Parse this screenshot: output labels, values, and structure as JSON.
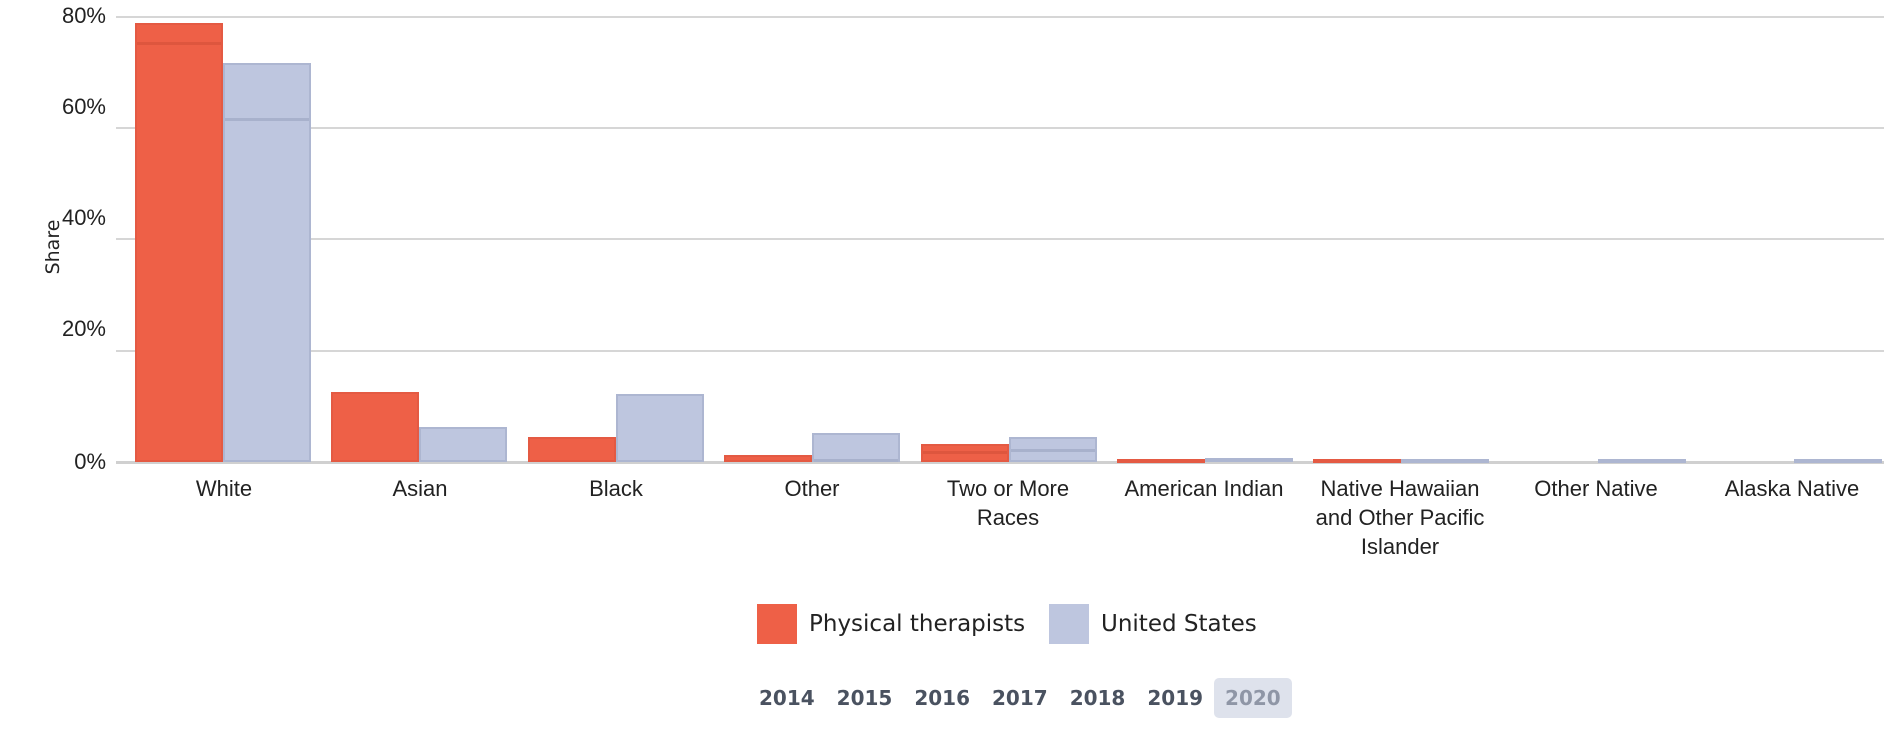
{
  "chart_data": {
    "type": "bar",
    "title": "",
    "xlabel": "",
    "ylabel": "Share",
    "ylim": [
      0,
      80
    ],
    "yticks": [
      "0%",
      "20%",
      "40%",
      "60%",
      "80%"
    ],
    "grid": true,
    "legend_position": "bottom",
    "categories": [
      "White",
      "Asian",
      "Black",
      "Other",
      "Two or More Races",
      "American Indian",
      "Native Hawaiian and Other Pacific Islander",
      "Other Native",
      "Alaska Native"
    ],
    "series": [
      {
        "name": "Physical therapists",
        "color": "#ee6047",
        "values": [
          78.9,
          12.6,
          4.5,
          1.3,
          3.2,
          0.6,
          0.4,
          0.0,
          0.0
        ],
        "inner_marks": [
          75.5,
          null,
          null,
          null,
          2.0,
          null,
          null,
          null,
          null
        ]
      },
      {
        "name": "United States",
        "color": "#bec6df",
        "values": [
          71.7,
          6.3,
          12.2,
          5.2,
          4.5,
          0.8,
          0.3,
          0.2,
          0.2
        ],
        "inner_marks": [
          61.8,
          null,
          null,
          0.5,
          2.3,
          null,
          null,
          null,
          null
        ]
      }
    ]
  },
  "axis": {
    "ylabel": "Share",
    "ticks": [
      {
        "label": "80%",
        "value": 80
      },
      {
        "label": "60%",
        "value": 60
      },
      {
        "label": "40%",
        "value": 40
      },
      {
        "label": "20%",
        "value": 20
      },
      {
        "label": "0%",
        "value": 0
      }
    ]
  },
  "xlabels": [
    {
      "line1": "White",
      "line2": "",
      "line3": ""
    },
    {
      "line1": "Asian",
      "line2": "",
      "line3": ""
    },
    {
      "line1": "Black",
      "line2": "",
      "line3": ""
    },
    {
      "line1": "Other",
      "line2": "",
      "line3": ""
    },
    {
      "line1": "Two or More",
      "line2": "Races",
      "line3": ""
    },
    {
      "line1": "American Indian",
      "line2": "",
      "line3": ""
    },
    {
      "line1": "Native Hawaiian",
      "line2": "and Other Pacific",
      "line3": "Islander"
    },
    {
      "line1": "Other Native",
      "line2": "",
      "line3": ""
    },
    {
      "line1": "Alaska Native",
      "line2": "",
      "line3": ""
    }
  ],
  "legend": {
    "items": [
      {
        "label": "Physical therapists",
        "color": "#ee6047"
      },
      {
        "label": "United States",
        "color": "#bec6df"
      }
    ]
  },
  "years": {
    "items": [
      "2014",
      "2015",
      "2016",
      "2017",
      "2018",
      "2019",
      "2020"
    ],
    "selected": "2020"
  }
}
